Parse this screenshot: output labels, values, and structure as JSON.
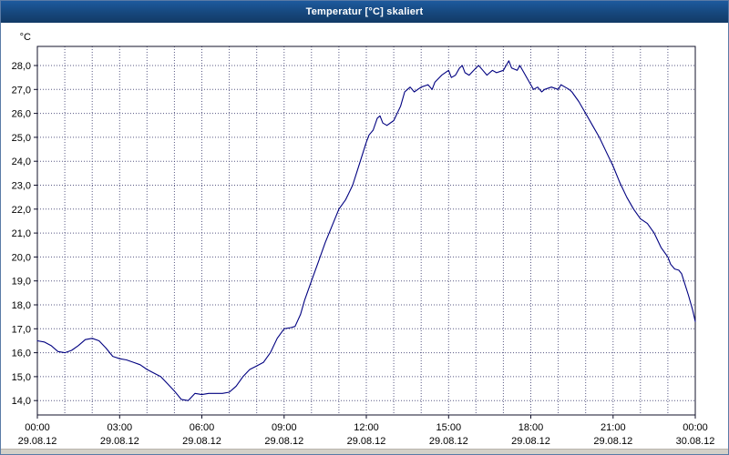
{
  "window": {
    "title": "Temperatur [°C] skaliert"
  },
  "colors": {
    "titlebar": "#16477c",
    "titlebar_text": "#ffffff",
    "line": "#000080",
    "grid": "#3c3c6e",
    "plot_background": "#ffffff",
    "footer_strip": "#d4d0c8"
  },
  "chart_data": {
    "type": "line",
    "title": "Temperatur [°C] skaliert",
    "y_unit_label": "°C",
    "xlabel": "",
    "ylabel": "Temperatur [°C]",
    "xlim": [
      0,
      24
    ],
    "ylim": [
      13.4,
      28.8
    ],
    "grid": true,
    "legend": "none",
    "x_grid_step_hours": 1,
    "y_ticks": [
      {
        "value": 28,
        "label": "28,0"
      },
      {
        "value": 27,
        "label": "27,0"
      },
      {
        "value": 26,
        "label": "26,0"
      },
      {
        "value": 25,
        "label": "25,0"
      },
      {
        "value": 24,
        "label": "24,0"
      },
      {
        "value": 23,
        "label": "23,0"
      },
      {
        "value": 22,
        "label": "22,0"
      },
      {
        "value": 21,
        "label": "21,0"
      },
      {
        "value": 20,
        "label": "20,0"
      },
      {
        "value": 19,
        "label": "19,0"
      },
      {
        "value": 18,
        "label": "18,0"
      },
      {
        "value": 17,
        "label": "17,0"
      },
      {
        "value": 16,
        "label": "16,0"
      },
      {
        "value": 15,
        "label": "15,0"
      },
      {
        "value": 14,
        "label": "14,0"
      }
    ],
    "x_ticks": [
      {
        "hour": 0,
        "time": "00:00",
        "date": "29.08.12"
      },
      {
        "hour": 3,
        "time": "03:00",
        "date": "29.08.12"
      },
      {
        "hour": 6,
        "time": "06:00",
        "date": "29.08.12"
      },
      {
        "hour": 9,
        "time": "09:00",
        "date": "29.08.12"
      },
      {
        "hour": 12,
        "time": "12:00",
        "date": "29.08.12"
      },
      {
        "hour": 15,
        "time": "15:00",
        "date": "29.08.12"
      },
      {
        "hour": 18,
        "time": "18:00",
        "date": "29.08.12"
      },
      {
        "hour": 21,
        "time": "21:00",
        "date": "29.08.12"
      },
      {
        "hour": 24,
        "time": "00:00",
        "date": "30.08.12"
      }
    ],
    "series": [
      {
        "name": "Temperatur",
        "color": "#000080",
        "points": [
          [
            0.0,
            16.5
          ],
          [
            0.25,
            16.45
          ],
          [
            0.5,
            16.3
          ],
          [
            0.75,
            16.05
          ],
          [
            1.0,
            16.0
          ],
          [
            1.25,
            16.1
          ],
          [
            1.5,
            16.3
          ],
          [
            1.75,
            16.55
          ],
          [
            2.0,
            16.6
          ],
          [
            2.25,
            16.5
          ],
          [
            2.5,
            16.2
          ],
          [
            2.75,
            15.85
          ],
          [
            3.0,
            15.75
          ],
          [
            3.25,
            15.7
          ],
          [
            3.5,
            15.6
          ],
          [
            3.75,
            15.5
          ],
          [
            4.0,
            15.3
          ],
          [
            4.25,
            15.15
          ],
          [
            4.5,
            15.0
          ],
          [
            4.75,
            14.7
          ],
          [
            5.0,
            14.4
          ],
          [
            5.25,
            14.05
          ],
          [
            5.5,
            14.0
          ],
          [
            5.75,
            14.3
          ],
          [
            6.0,
            14.25
          ],
          [
            6.25,
            14.3
          ],
          [
            6.5,
            14.3
          ],
          [
            6.75,
            14.3
          ],
          [
            7.0,
            14.35
          ],
          [
            7.25,
            14.6
          ],
          [
            7.5,
            15.0
          ],
          [
            7.75,
            15.3
          ],
          [
            8.0,
            15.45
          ],
          [
            8.25,
            15.6
          ],
          [
            8.5,
            16.0
          ],
          [
            8.75,
            16.6
          ],
          [
            9.0,
            17.0
          ],
          [
            9.25,
            17.05
          ],
          [
            9.4,
            17.1
          ],
          [
            9.6,
            17.6
          ],
          [
            9.75,
            18.2
          ],
          [
            10.0,
            19.0
          ],
          [
            10.25,
            19.8
          ],
          [
            10.5,
            20.6
          ],
          [
            10.75,
            21.3
          ],
          [
            11.0,
            22.0
          ],
          [
            11.25,
            22.4
          ],
          [
            11.5,
            23.0
          ],
          [
            11.75,
            23.9
          ],
          [
            12.0,
            24.8
          ],
          [
            12.1,
            25.1
          ],
          [
            12.25,
            25.3
          ],
          [
            12.4,
            25.8
          ],
          [
            12.5,
            25.9
          ],
          [
            12.6,
            25.6
          ],
          [
            12.75,
            25.5
          ],
          [
            13.0,
            25.7
          ],
          [
            13.25,
            26.3
          ],
          [
            13.4,
            26.9
          ],
          [
            13.5,
            27.0
          ],
          [
            13.6,
            27.1
          ],
          [
            13.75,
            26.9
          ],
          [
            14.0,
            27.1
          ],
          [
            14.25,
            27.2
          ],
          [
            14.4,
            27.0
          ],
          [
            14.5,
            27.3
          ],
          [
            14.75,
            27.6
          ],
          [
            15.0,
            27.8
          ],
          [
            15.1,
            27.5
          ],
          [
            15.25,
            27.6
          ],
          [
            15.4,
            27.9
          ],
          [
            15.5,
            28.0
          ],
          [
            15.6,
            27.7
          ],
          [
            15.75,
            27.6
          ],
          [
            16.0,
            27.9
          ],
          [
            16.1,
            28.0
          ],
          [
            16.25,
            27.8
          ],
          [
            16.4,
            27.6
          ],
          [
            16.5,
            27.7
          ],
          [
            16.6,
            27.8
          ],
          [
            16.75,
            27.7
          ],
          [
            17.0,
            27.8
          ],
          [
            17.1,
            28.0
          ],
          [
            17.2,
            28.2
          ],
          [
            17.3,
            27.9
          ],
          [
            17.5,
            27.8
          ],
          [
            17.6,
            28.0
          ],
          [
            17.75,
            27.7
          ],
          [
            18.0,
            27.2
          ],
          [
            18.1,
            27.0
          ],
          [
            18.25,
            27.1
          ],
          [
            18.4,
            26.9
          ],
          [
            18.5,
            27.0
          ],
          [
            18.75,
            27.1
          ],
          [
            19.0,
            27.0
          ],
          [
            19.1,
            27.2
          ],
          [
            19.25,
            27.1
          ],
          [
            19.4,
            27.0
          ],
          [
            19.5,
            26.9
          ],
          [
            19.75,
            26.5
          ],
          [
            20.0,
            26.0
          ],
          [
            20.25,
            25.5
          ],
          [
            20.5,
            25.0
          ],
          [
            20.75,
            24.4
          ],
          [
            21.0,
            23.8
          ],
          [
            21.25,
            23.1
          ],
          [
            21.5,
            22.5
          ],
          [
            21.75,
            22.0
          ],
          [
            22.0,
            21.6
          ],
          [
            22.25,
            21.4
          ],
          [
            22.5,
            21.0
          ],
          [
            22.75,
            20.4
          ],
          [
            23.0,
            20.0
          ],
          [
            23.1,
            19.7
          ],
          [
            23.25,
            19.5
          ],
          [
            23.4,
            19.45
          ],
          [
            23.5,
            19.3
          ],
          [
            23.75,
            18.4
          ],
          [
            23.9,
            17.8
          ],
          [
            24.0,
            17.3
          ]
        ]
      }
    ]
  }
}
